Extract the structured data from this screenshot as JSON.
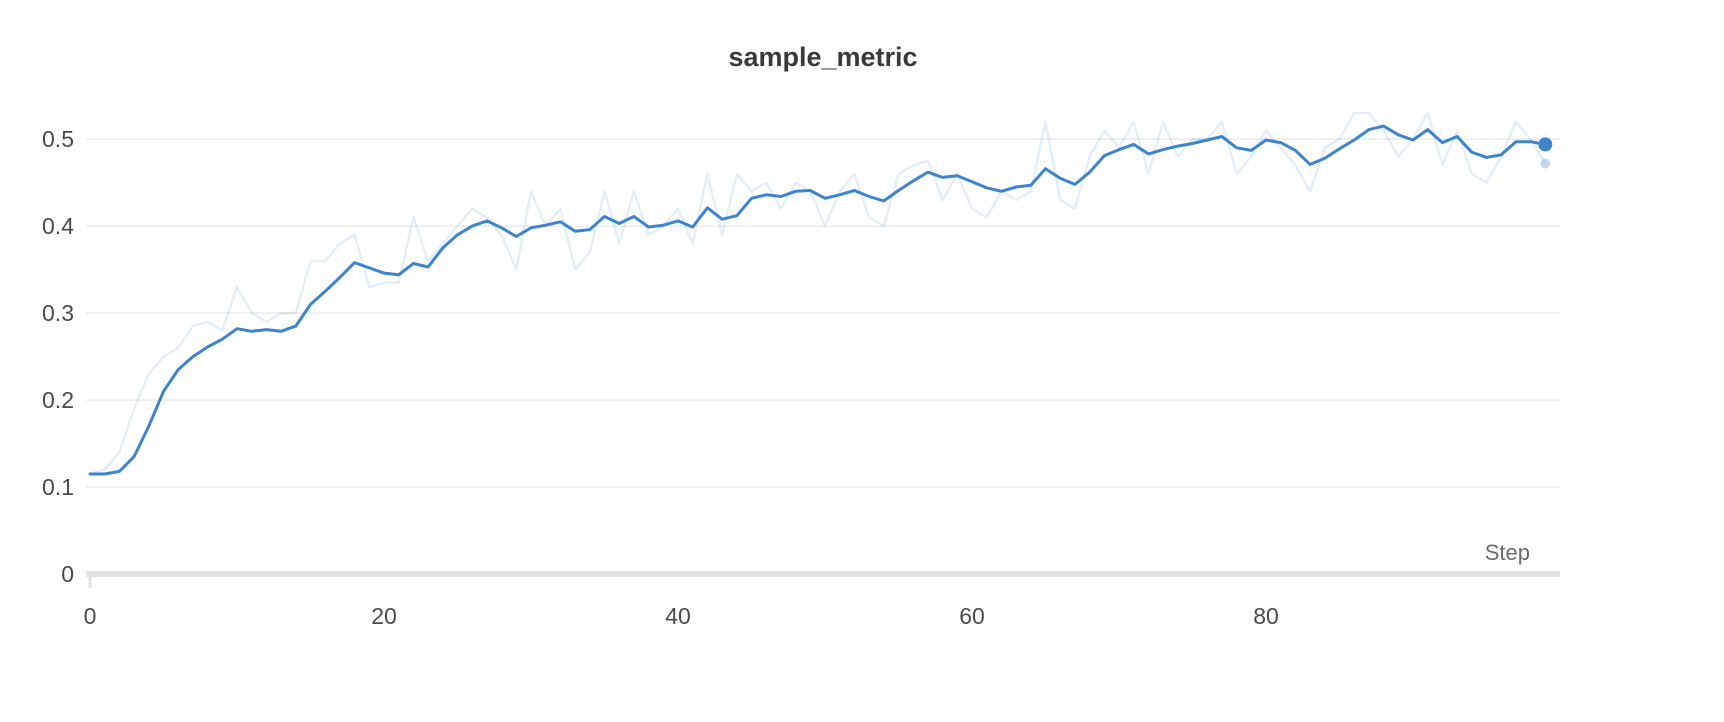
{
  "chart_data": {
    "type": "line",
    "title": "sample_metric",
    "xlabel": "Step",
    "ylabel": "",
    "xlim": [
      0,
      100
    ],
    "ylim": [
      0,
      0.545
    ],
    "x_ticks": [
      0,
      20,
      40,
      60,
      80
    ],
    "y_ticks": [
      0,
      0.1,
      0.2,
      0.3,
      0.4,
      0.5
    ],
    "y_tick_labels": [
      "0",
      "0.1",
      "0.2",
      "0.3",
      "0.4",
      "0.5"
    ],
    "grid": "horizontal",
    "legend": "none",
    "colors": {
      "line": "#3e84ca",
      "grid": "#ebebeb",
      "axis": "#e2e2e2",
      "tick_label": "#4a4a4a",
      "axis_label": "#6b6b6b",
      "title": "#3a3a3a"
    },
    "x": [
      0,
      1,
      2,
      3,
      4,
      5,
      6,
      7,
      8,
      9,
      10,
      11,
      12,
      13,
      14,
      15,
      16,
      17,
      18,
      19,
      20,
      21,
      22,
      23,
      24,
      25,
      26,
      27,
      28,
      29,
      30,
      31,
      32,
      33,
      34,
      35,
      36,
      37,
      38,
      39,
      40,
      41,
      42,
      43,
      44,
      45,
      46,
      47,
      48,
      49,
      50,
      51,
      52,
      53,
      54,
      55,
      56,
      57,
      58,
      59,
      60,
      61,
      62,
      63,
      64,
      65,
      66,
      67,
      68,
      69,
      70,
      71,
      72,
      73,
      74,
      75,
      76,
      77,
      78,
      79,
      80,
      81,
      82,
      83,
      84,
      85,
      86,
      87,
      88,
      89,
      90,
      91,
      92,
      93,
      94,
      95,
      96,
      97,
      98,
      99
    ],
    "series": [
      {
        "name": "sample_metric (original)",
        "color": "#3e84ca",
        "opacity": 0.14,
        "width": 2.5,
        "end_dot_radius": 5,
        "end_dot_opacity": 0.3,
        "values": [
          0.115,
          0.12,
          0.14,
          0.19,
          0.23,
          0.25,
          0.26,
          0.285,
          0.29,
          0.28,
          0.33,
          0.3,
          0.29,
          0.3,
          0.3,
          0.36,
          0.36,
          0.38,
          0.39,
          0.33,
          0.335,
          0.335,
          0.41,
          0.36,
          0.38,
          0.4,
          0.42,
          0.41,
          0.39,
          0.35,
          0.44,
          0.4,
          0.42,
          0.35,
          0.37,
          0.44,
          0.38,
          0.44,
          0.39,
          0.4,
          0.42,
          0.38,
          0.46,
          0.39,
          0.46,
          0.44,
          0.45,
          0.42,
          0.45,
          0.44,
          0.4,
          0.44,
          0.46,
          0.41,
          0.4,
          0.46,
          0.47,
          0.475,
          0.43,
          0.46,
          0.42,
          0.41,
          0.44,
          0.43,
          0.44,
          0.52,
          0.43,
          0.42,
          0.48,
          0.51,
          0.49,
          0.52,
          0.46,
          0.52,
          0.48,
          0.5,
          0.5,
          0.52,
          0.46,
          0.48,
          0.51,
          0.49,
          0.47,
          0.44,
          0.49,
          0.5,
          0.53,
          0.53,
          0.51,
          0.48,
          0.5,
          0.53,
          0.47,
          0.51,
          0.46,
          0.45,
          0.48,
          0.52,
          0.5,
          0.472
        ]
      },
      {
        "name": "sample_metric (smoothed)",
        "color": "#3e84ca",
        "opacity": 1,
        "width": 3,
        "end_dot_radius": 7,
        "end_dot_opacity": 1,
        "values": [
          0.115,
          0.115,
          0.118,
          0.135,
          0.17,
          0.21,
          0.235,
          0.25,
          0.261,
          0.27,
          0.282,
          0.279,
          0.281,
          0.279,
          0.285,
          0.31,
          0.325,
          0.341,
          0.358,
          0.352,
          0.346,
          0.344,
          0.357,
          0.353,
          0.375,
          0.39,
          0.4,
          0.406,
          0.398,
          0.388,
          0.398,
          0.401,
          0.405,
          0.394,
          0.396,
          0.411,
          0.403,
          0.411,
          0.399,
          0.401,
          0.406,
          0.399,
          0.421,
          0.408,
          0.412,
          0.432,
          0.436,
          0.434,
          0.44,
          0.441,
          0.432,
          0.436,
          0.441,
          0.434,
          0.429,
          0.441,
          0.452,
          0.462,
          0.456,
          0.458,
          0.451,
          0.444,
          0.44,
          0.445,
          0.447,
          0.466,
          0.455,
          0.448,
          0.462,
          0.481,
          0.488,
          0.494,
          0.483,
          0.488,
          0.492,
          0.495,
          0.499,
          0.503,
          0.49,
          0.487,
          0.499,
          0.496,
          0.487,
          0.471,
          0.478,
          0.489,
          0.499,
          0.511,
          0.515,
          0.505,
          0.499,
          0.511,
          0.496,
          0.503,
          0.485,
          0.479,
          0.482,
          0.497,
          0.497,
          0.494
        ]
      }
    ]
  }
}
